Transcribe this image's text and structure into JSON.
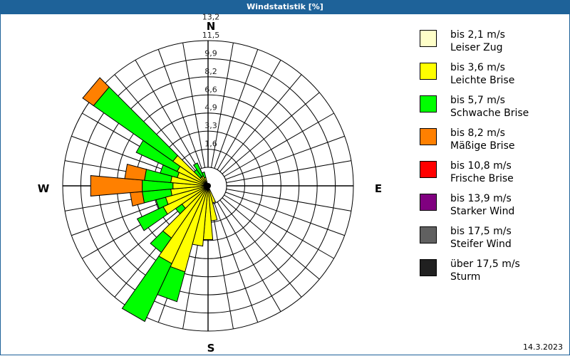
{
  "window": {
    "title": "Windstatistik [%]"
  },
  "footer": {
    "date": "14.3.2023"
  },
  "compass": {
    "n": "N",
    "e": "E",
    "s": "S",
    "w": "W"
  },
  "legend": [
    {
      "range": "bis 2,1 m/s",
      "name": "Leiser Zug",
      "color": "#ffffc8"
    },
    {
      "range": "bis 3,6 m/s",
      "name": "Leichte Brise",
      "color": "#ffff00"
    },
    {
      "range": "bis 5,7 m/s",
      "name": "Schwache Brise",
      "color": "#00ff00"
    },
    {
      "range": "bis 8,2 m/s",
      "name": "Mäßige Brise",
      "color": "#ff8000"
    },
    {
      "range": "bis 10,8 m/s",
      "name": "Frische Brise",
      "color": "#ff0000"
    },
    {
      "range": "bis 13,9 m/s",
      "name": "Starker Wind",
      "color": "#800080"
    },
    {
      "range": "bis 17,5 m/s",
      "name": "Steifer Wind",
      "color": "#606060"
    },
    {
      "range": "über 17,5 m/s",
      "name": "Sturm",
      "color": "#202020"
    }
  ],
  "chart_data": {
    "type": "windrose",
    "title": "Windstatistik [%]",
    "radial_ticks": [
      "1,6",
      "3,3",
      "4,9",
      "6,6",
      "8,2",
      "9,9",
      "11,5",
      "13,2"
    ],
    "rmax": 13.2,
    "sector_width_deg": 10,
    "classes": [
      "bis 2,1 m/s",
      "bis 3,6 m/s",
      "bis 5,7 m/s",
      "bis 8,2 m/s"
    ],
    "sectors": [
      {
        "dir": 160,
        "cum": [
          0.3,
          1.6,
          1.6,
          1.6
        ]
      },
      {
        "dir": 170,
        "cum": [
          0.3,
          3.2,
          3.2,
          3.2
        ]
      },
      {
        "dir": 180,
        "cum": [
          0.3,
          4.9,
          4.9,
          4.9
        ]
      },
      {
        "dir": 190,
        "cum": [
          0.3,
          5.5,
          5.5,
          5.5
        ]
      },
      {
        "dir": 200,
        "cum": [
          0.3,
          8.1,
          10.9,
          10.9
        ]
      },
      {
        "dir": 210,
        "cum": [
          0.3,
          7.8,
          13.6,
          13.6
        ]
      },
      {
        "dir": 220,
        "cum": [
          0.3,
          5.8,
          7.4,
          7.4
        ]
      },
      {
        "dir": 230,
        "cum": [
          0.3,
          2.9,
          3.6,
          3.6
        ]
      },
      {
        "dir": 240,
        "cum": [
          0.3,
          4.5,
          7.1,
          7.1
        ]
      },
      {
        "dir": 250,
        "cum": [
          0.3,
          4.0,
          4.9,
          4.9
        ]
      },
      {
        "dir": 260,
        "cum": [
          0.3,
          3.4,
          6.0,
          7.1
        ]
      },
      {
        "dir": 270,
        "cum": [
          0.3,
          3.2,
          6.0,
          10.7
        ]
      },
      {
        "dir": 280,
        "cum": [
          0.3,
          3.4,
          5.8,
          7.6
        ]
      },
      {
        "dir": 290,
        "cum": [
          0.3,
          2.9,
          4.5,
          4.5
        ]
      },
      {
        "dir": 300,
        "cum": [
          0.3,
          3.1,
          7.2,
          7.2
        ]
      },
      {
        "dir": 310,
        "cum": [
          0.3,
          3.9,
          12.7,
          13.9
        ]
      },
      {
        "dir": 320,
        "cum": [
          0.3,
          1.0,
          1.8,
          1.8
        ]
      },
      {
        "dir": 330,
        "cum": [
          0.3,
          1.0,
          2.3,
          2.3
        ]
      },
      {
        "dir": 340,
        "cum": [
          0.3,
          0.8,
          1.3,
          1.3
        ]
      }
    ]
  }
}
